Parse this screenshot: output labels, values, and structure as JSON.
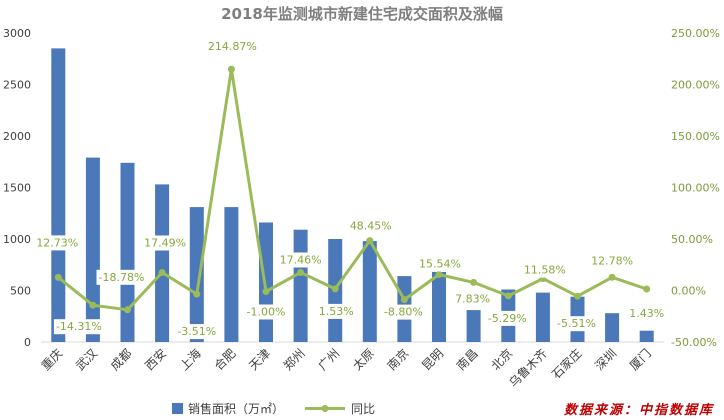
{
  "chart_data": {
    "type": "bar",
    "title": "2018年监测城市新建住宅成交面积及涨幅",
    "categories": [
      "重庆",
      "武汉",
      "成都",
      "西安",
      "上海",
      "合肥",
      "天津",
      "郑州",
      "广州",
      "太原",
      "南京",
      "昆明",
      "南昌",
      "北京",
      "乌鲁木齐",
      "石家庄",
      "深圳",
      "厦门"
    ],
    "series": [
      {
        "name": "销售面积（万㎡）",
        "type": "bar",
        "axis": "left",
        "color": "#4a78b8",
        "values": [
          2850,
          1790,
          1740,
          1530,
          1310,
          1310,
          1160,
          1090,
          1000,
          980,
          640,
          680,
          310,
          510,
          480,
          440,
          280,
          110
        ]
      },
      {
        "name": "同比",
        "type": "line",
        "axis": "right",
        "color": "#9bbb59",
        "values": [
          12.73,
          -14.31,
          -18.78,
          17.49,
          -3.51,
          214.87,
          -1.0,
          17.46,
          1.53,
          48.45,
          -8.8,
          15.54,
          7.83,
          -5.29,
          11.58,
          -5.51,
          12.78,
          1.43
        ],
        "labels": [
          "12.73%",
          "-14.31%",
          "-18.78%",
          "17.49%",
          "-3.51%",
          "214.87%",
          "-1.00%",
          "17.46%",
          "1.53%",
          "48.45%",
          "-8.80%",
          "15.54%",
          "7.83%",
          "-5.29%",
          "11.58%",
          "-5.51%",
          "12.78%",
          "1.43%"
        ]
      }
    ],
    "y_left": {
      "ylim": [
        0,
        3000
      ],
      "ticks": [
        "0",
        "500",
        "1000",
        "1500",
        "2000",
        "2500",
        "3000"
      ]
    },
    "y_right": {
      "ylim": [
        -50,
        250
      ],
      "ticks": [
        "-50.00%",
        "0.00%",
        "50.00%",
        "100.00%",
        "150.00%",
        "200.00%",
        "250.00%"
      ]
    },
    "grid": false,
    "legend": "bottom"
  },
  "source": "数据来源：中指数据库",
  "colors": {
    "title": "#7f7f7f",
    "axis_left": "#404040",
    "axis_right": "#7f9a3a",
    "data_label": "#86a83c",
    "source": "#c00000"
  }
}
